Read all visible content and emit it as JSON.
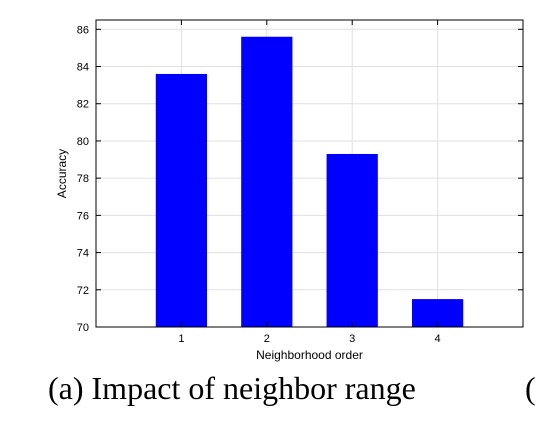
{
  "caption": {
    "text": "(a) Impact of neighbor range",
    "next_fragment": "("
  },
  "chart_data": {
    "type": "bar",
    "title": "",
    "xlabel": "Neighborhood order",
    "ylabel": "Accuracy",
    "categories": [
      "1",
      "2",
      "3",
      "4"
    ],
    "values": [
      83.6,
      85.6,
      79.3,
      71.5
    ],
    "xlim": [
      0,
      5
    ],
    "ylim": [
      70,
      86.5
    ],
    "yticks": [
      70,
      72,
      74,
      76,
      78,
      80,
      82,
      84,
      86
    ],
    "grid": true,
    "bar_color": "#0000ff",
    "grid_color": "#e0e0e0"
  }
}
